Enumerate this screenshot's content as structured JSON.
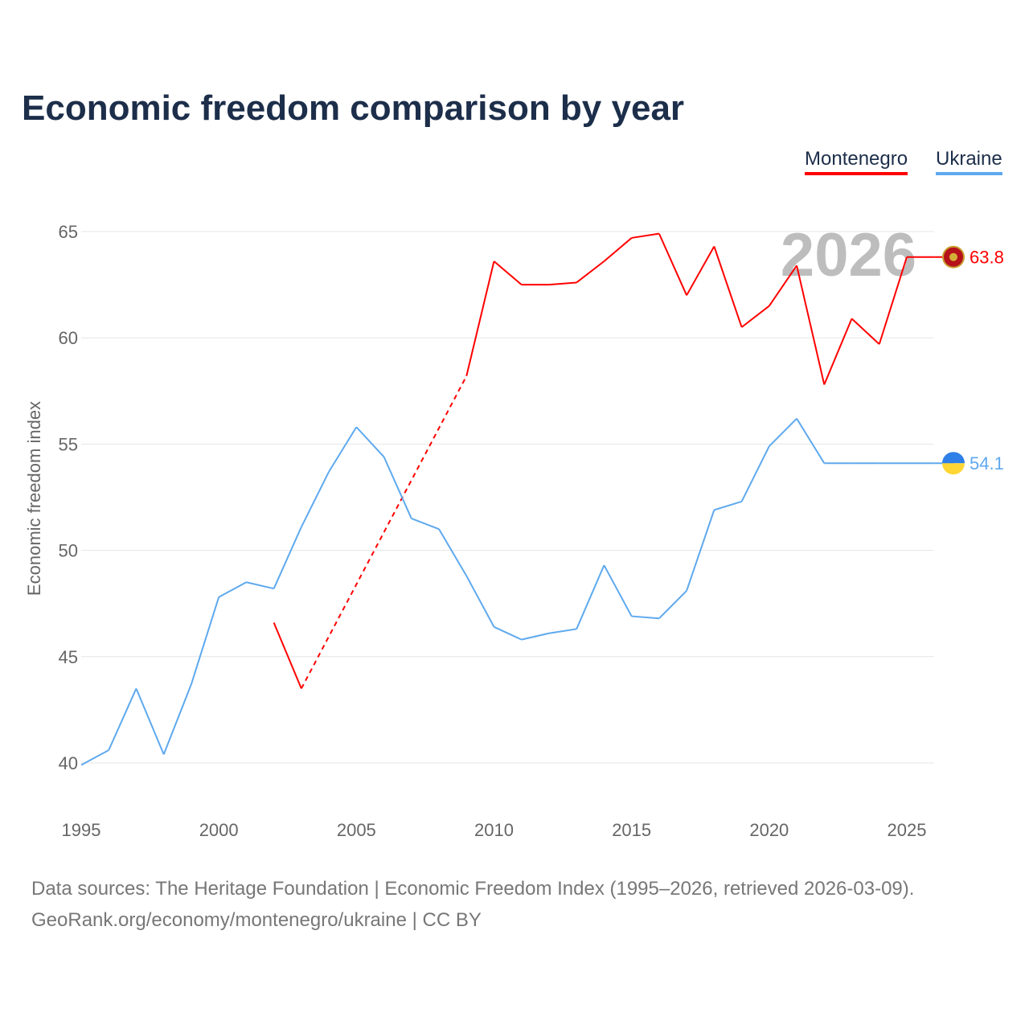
{
  "chart_data": {
    "type": "line",
    "title": "Economic freedom comparison by year",
    "ylabel": "Economic freedom index",
    "xlabel": "",
    "xlim": [
      1995,
      2026
    ],
    "ylim": [
      40,
      65
    ],
    "x_ticks": [
      1995,
      2000,
      2005,
      2010,
      2015,
      2020,
      2025
    ],
    "y_ticks": [
      40,
      45,
      50,
      55,
      60,
      65
    ],
    "grid": true,
    "legend_placement": "top-right",
    "year_watermark": "2026",
    "series": [
      {
        "name": "Montenegro",
        "color": "#ff0000",
        "end_label": "63.8",
        "points": [
          [
            2002,
            46.6
          ],
          [
            2003,
            43.5
          ],
          [
            2009,
            58.2
          ],
          [
            2010,
            63.6
          ],
          [
            2011,
            62.5
          ],
          [
            2012,
            62.5
          ],
          [
            2013,
            62.6
          ],
          [
            2014,
            63.6
          ],
          [
            2015,
            64.7
          ],
          [
            2016,
            64.9
          ],
          [
            2017,
            62.0
          ],
          [
            2018,
            64.3
          ],
          [
            2019,
            60.5
          ],
          [
            2020,
            61.5
          ],
          [
            2021,
            63.4
          ],
          [
            2022,
            57.8
          ],
          [
            2023,
            60.9
          ],
          [
            2024,
            59.7
          ],
          [
            2025,
            63.8
          ],
          [
            2026,
            63.8
          ]
        ],
        "dashed_gaps": [
          [
            2003,
            2009
          ]
        ]
      },
      {
        "name": "Ukraine",
        "color": "#5ea9ee",
        "end_label": "54.1",
        "points": [
          [
            1995,
            39.9
          ],
          [
            1996,
            40.6
          ],
          [
            1997,
            43.5
          ],
          [
            1998,
            40.4
          ],
          [
            1999,
            43.7
          ],
          [
            2000,
            47.8
          ],
          [
            2001,
            48.5
          ],
          [
            2002,
            48.2
          ],
          [
            2003,
            51.1
          ],
          [
            2004,
            53.7
          ],
          [
            2005,
            55.8
          ],
          [
            2006,
            54.4
          ],
          [
            2007,
            51.5
          ],
          [
            2008,
            51.0
          ],
          [
            2009,
            48.8
          ],
          [
            2010,
            46.4
          ],
          [
            2011,
            45.8
          ],
          [
            2012,
            46.1
          ],
          [
            2013,
            46.3
          ],
          [
            2014,
            49.3
          ],
          [
            2015,
            46.9
          ],
          [
            2016,
            46.8
          ],
          [
            2017,
            48.1
          ],
          [
            2018,
            51.9
          ],
          [
            2019,
            52.3
          ],
          [
            2020,
            54.9
          ],
          [
            2021,
            56.2
          ],
          [
            2022,
            54.1
          ],
          [
            2023,
            54.1
          ],
          [
            2024,
            54.1
          ],
          [
            2025,
            54.1
          ],
          [
            2026,
            54.1
          ]
        ],
        "dashed_gaps": []
      }
    ]
  },
  "footer": {
    "line1": "Data sources: The Heritage Foundation | Economic Freedom Index (1995–2026, retrieved 2026-03-09).",
    "line2": "GeoRank.org/economy/montenegro/ukraine | CC BY"
  }
}
